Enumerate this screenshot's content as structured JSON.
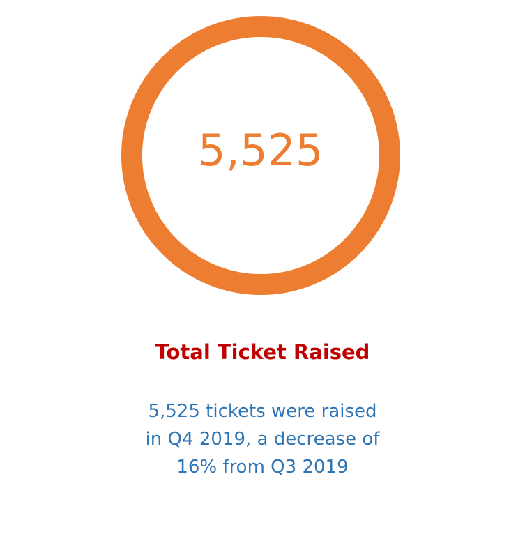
{
  "metric": {
    "value": "5,525",
    "ring_color": "#ED7D31"
  },
  "title": "Total Ticket Raised",
  "title_color": "#C00000",
  "description": "5,525 tickets were raised in Q4 2019, a decrease of 16% from Q3 2019",
  "description_color": "#2E75B6"
}
